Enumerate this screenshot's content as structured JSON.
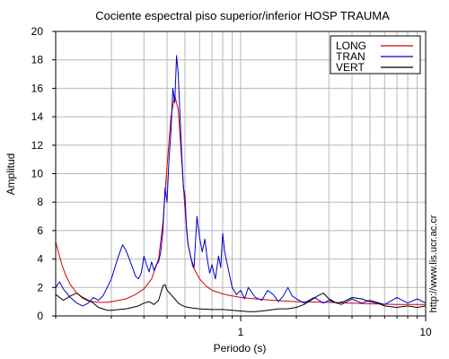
{
  "chart_data": {
    "type": "line",
    "title": "Cociente espectral piso superior/inferior  HOSP TRAUMA",
    "xlabel": "Periodo (s)",
    "ylabel": "Amplitud",
    "x_scale": "log",
    "xlim": [
      0.1,
      10
    ],
    "ylim": [
      0,
      20
    ],
    "x_ticks": [
      {
        "value": 1,
        "label": "1"
      },
      {
        "value": 10,
        "label": "10"
      }
    ],
    "y_ticks": [
      0,
      2,
      4,
      6,
      8,
      10,
      12,
      14,
      16,
      18,
      20
    ],
    "grid": true,
    "legend_position": "top-right",
    "series": [
      {
        "name": "LONG",
        "color": "#d40000",
        "points": [
          [
            0.1,
            5.2
          ],
          [
            0.103,
            4.6
          ],
          [
            0.108,
            3.6
          ],
          [
            0.113,
            2.9
          ],
          [
            0.12,
            2.2
          ],
          [
            0.13,
            1.6
          ],
          [
            0.14,
            1.25
          ],
          [
            0.15,
            1.05
          ],
          [
            0.17,
            0.95
          ],
          [
            0.19,
            0.95
          ],
          [
            0.21,
            1.05
          ],
          [
            0.24,
            1.2
          ],
          [
            0.27,
            1.5
          ],
          [
            0.3,
            1.9
          ],
          [
            0.33,
            2.6
          ],
          [
            0.36,
            4.0
          ],
          [
            0.38,
            6.5
          ],
          [
            0.4,
            10.5
          ],
          [
            0.42,
            14.0
          ],
          [
            0.44,
            15.5
          ],
          [
            0.46,
            14.5
          ],
          [
            0.48,
            11.0
          ],
          [
            0.5,
            7.5
          ],
          [
            0.52,
            5.0
          ],
          [
            0.55,
            3.5
          ],
          [
            0.6,
            2.6
          ],
          [
            0.65,
            2.1
          ],
          [
            0.7,
            1.8
          ],
          [
            0.8,
            1.55
          ],
          [
            0.9,
            1.4
          ],
          [
            1.0,
            1.3
          ],
          [
            1.2,
            1.2
          ],
          [
            1.5,
            1.1
          ],
          [
            2.0,
            1.0
          ],
          [
            3.0,
            0.95
          ],
          [
            4.0,
            0.9
          ],
          [
            5.0,
            0.85
          ],
          [
            7.0,
            0.8
          ],
          [
            10.0,
            0.8
          ]
        ]
      },
      {
        "name": "TRAN",
        "color": "#0000cc",
        "points": [
          [
            0.1,
            2.0
          ],
          [
            0.105,
            2.4
          ],
          [
            0.11,
            1.9
          ],
          [
            0.12,
            1.3
          ],
          [
            0.13,
            0.9
          ],
          [
            0.14,
            0.7
          ],
          [
            0.15,
            0.9
          ],
          [
            0.16,
            1.3
          ],
          [
            0.17,
            1.1
          ],
          [
            0.18,
            1.4
          ],
          [
            0.19,
            2.0
          ],
          [
            0.2,
            2.6
          ],
          [
            0.21,
            3.5
          ],
          [
            0.22,
            4.3
          ],
          [
            0.23,
            5.0
          ],
          [
            0.24,
            4.6
          ],
          [
            0.25,
            4.0
          ],
          [
            0.26,
            3.4
          ],
          [
            0.27,
            2.8
          ],
          [
            0.28,
            2.6
          ],
          [
            0.29,
            3.0
          ],
          [
            0.3,
            4.2
          ],
          [
            0.31,
            3.6
          ],
          [
            0.32,
            3.1
          ],
          [
            0.33,
            3.8
          ],
          [
            0.34,
            3.2
          ],
          [
            0.35,
            3.6
          ],
          [
            0.36,
            3.8
          ],
          [
            0.37,
            4.5
          ],
          [
            0.38,
            6.0
          ],
          [
            0.39,
            9.0
          ],
          [
            0.4,
            8.0
          ],
          [
            0.41,
            11.0
          ],
          [
            0.42,
            13.0
          ],
          [
            0.43,
            16.0
          ],
          [
            0.44,
            15.0
          ],
          [
            0.45,
            18.3
          ],
          [
            0.46,
            17.0
          ],
          [
            0.47,
            14.0
          ],
          [
            0.48,
            11.5
          ],
          [
            0.49,
            9.0
          ],
          [
            0.5,
            8.5
          ],
          [
            0.51,
            6.0
          ],
          [
            0.52,
            5.0
          ],
          [
            0.54,
            4.0
          ],
          [
            0.56,
            3.4
          ],
          [
            0.58,
            7.0
          ],
          [
            0.6,
            5.5
          ],
          [
            0.62,
            4.5
          ],
          [
            0.64,
            5.4
          ],
          [
            0.66,
            4.0
          ],
          [
            0.68,
            3.0
          ],
          [
            0.7,
            3.6
          ],
          [
            0.73,
            2.6
          ],
          [
            0.76,
            4.2
          ],
          [
            0.78,
            3.4
          ],
          [
            0.8,
            5.8
          ],
          [
            0.82,
            4.5
          ],
          [
            0.85,
            3.5
          ],
          [
            0.9,
            2.0
          ],
          [
            0.95,
            1.5
          ],
          [
            1.0,
            1.8
          ],
          [
            1.05,
            1.2
          ],
          [
            1.1,
            2.0
          ],
          [
            1.2,
            1.3
          ],
          [
            1.3,
            1.1
          ],
          [
            1.4,
            1.8
          ],
          [
            1.5,
            1.5
          ],
          [
            1.6,
            1.0
          ],
          [
            1.7,
            1.4
          ],
          [
            1.8,
            2.0
          ],
          [
            1.9,
            1.4
          ],
          [
            2.0,
            1.2
          ],
          [
            2.2,
            0.9
          ],
          [
            2.5,
            1.3
          ],
          [
            2.8,
            0.9
          ],
          [
            3.0,
            1.1
          ],
          [
            3.5,
            0.8
          ],
          [
            4.0,
            1.2
          ],
          [
            4.5,
            0.9
          ],
          [
            5.0,
            1.1
          ],
          [
            6.0,
            0.8
          ],
          [
            7.0,
            1.3
          ],
          [
            8.0,
            0.9
          ],
          [
            9.0,
            1.2
          ],
          [
            10.0,
            0.9
          ]
        ]
      },
      {
        "name": "VERT",
        "color": "#000000",
        "points": [
          [
            0.1,
            1.5
          ],
          [
            0.105,
            1.3
          ],
          [
            0.11,
            1.1
          ],
          [
            0.12,
            1.4
          ],
          [
            0.13,
            1.6
          ],
          [
            0.14,
            1.3
          ],
          [
            0.15,
            1.1
          ],
          [
            0.16,
            0.9
          ],
          [
            0.17,
            0.6
          ],
          [
            0.18,
            0.5
          ],
          [
            0.19,
            0.4
          ],
          [
            0.2,
            0.4
          ],
          [
            0.22,
            0.45
          ],
          [
            0.24,
            0.5
          ],
          [
            0.26,
            0.6
          ],
          [
            0.28,
            0.7
          ],
          [
            0.3,
            0.9
          ],
          [
            0.32,
            1.0
          ],
          [
            0.34,
            0.8
          ],
          [
            0.36,
            1.1
          ],
          [
            0.37,
            1.6
          ],
          [
            0.38,
            2.1
          ],
          [
            0.39,
            2.2
          ],
          [
            0.4,
            1.8
          ],
          [
            0.42,
            1.5
          ],
          [
            0.44,
            1.2
          ],
          [
            0.46,
            0.9
          ],
          [
            0.48,
            0.75
          ],
          [
            0.5,
            0.65
          ],
          [
            0.55,
            0.55
          ],
          [
            0.6,
            0.5
          ],
          [
            0.7,
            0.45
          ],
          [
            0.8,
            0.45
          ],
          [
            0.9,
            0.4
          ],
          [
            1.0,
            0.35
          ],
          [
            1.1,
            0.3
          ],
          [
            1.2,
            0.3
          ],
          [
            1.3,
            0.35
          ],
          [
            1.4,
            0.4
          ],
          [
            1.6,
            0.5
          ],
          [
            1.8,
            0.5
          ],
          [
            2.0,
            0.6
          ],
          [
            2.2,
            0.8
          ],
          [
            2.4,
            1.1
          ],
          [
            2.6,
            1.4
          ],
          [
            2.8,
            1.6
          ],
          [
            3.0,
            1.2
          ],
          [
            3.3,
            0.9
          ],
          [
            3.6,
            1.0
          ],
          [
            4.0,
            1.3
          ],
          [
            4.5,
            1.2
          ],
          [
            5.0,
            1.0
          ],
          [
            5.5,
            0.9
          ],
          [
            6.0,
            0.7
          ],
          [
            7.0,
            0.6
          ],
          [
            8.0,
            0.7
          ],
          [
            9.0,
            0.6
          ],
          [
            10.0,
            0.7
          ]
        ]
      }
    ]
  },
  "side_text": "http://www.lis.ucr.ac.cr"
}
